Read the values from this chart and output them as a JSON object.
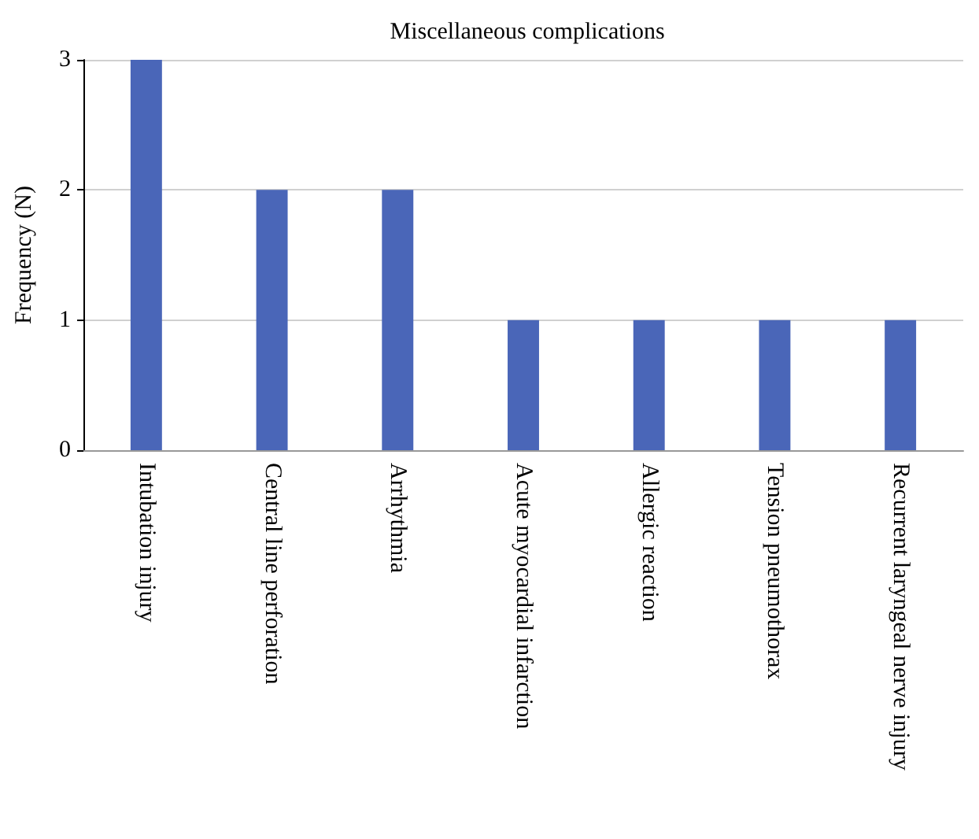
{
  "chart_data": {
    "type": "bar",
    "title": "Miscellaneous complications",
    "ylabel": "Frequency (N)",
    "categories": [
      "Intubation injury",
      "Central line perforation",
      "Arrhythmia",
      "Acute myocardial infarction",
      "Allergic reaction",
      "Tension pneumothorax",
      "Recurrent laryngeal nerve injury"
    ],
    "values": [
      3,
      2,
      2,
      1,
      1,
      1,
      1
    ],
    "color": "#4a66b8",
    "ylim": [
      0,
      3
    ],
    "yticks": [
      0,
      1,
      2,
      3
    ],
    "grid": "y"
  }
}
